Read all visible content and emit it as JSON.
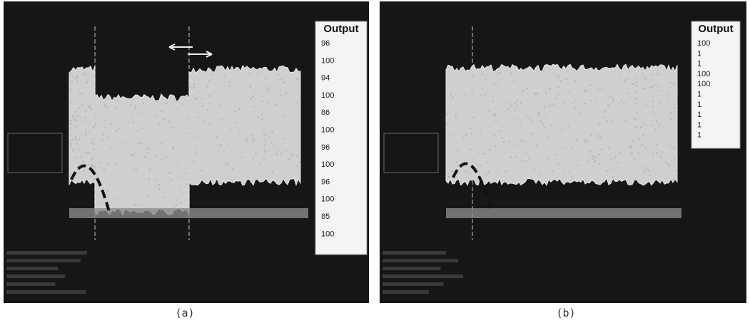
{
  "panels": [
    {
      "caption": "(a)",
      "output_title": "Output",
      "outputs": [
        "96",
        "100",
        "94",
        "100",
        "86",
        "100",
        "96",
        "100",
        "96",
        "100",
        "85",
        "100"
      ]
    },
    {
      "caption": "(b)",
      "output_title": "Output",
      "outputs": [
        "100",
        "1",
        "1",
        "100",
        "100",
        "1",
        "1",
        "1",
        "1",
        "1"
      ]
    }
  ]
}
